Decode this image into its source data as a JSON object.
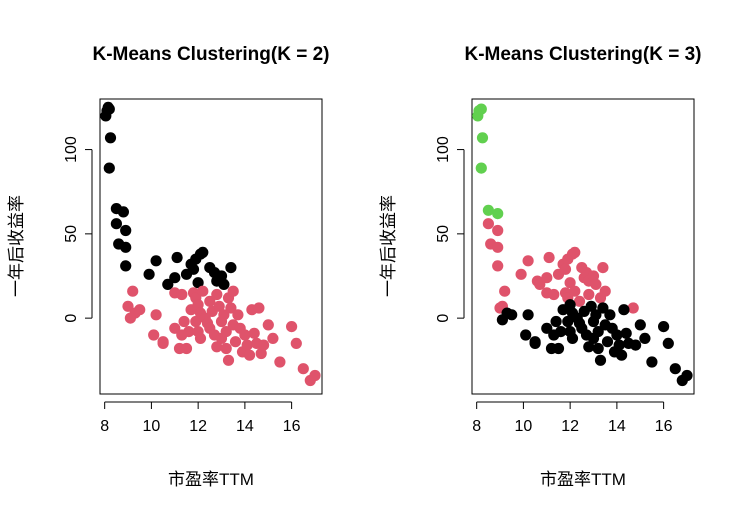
{
  "colors": {
    "black": "#000000",
    "pink": "#DF536B",
    "green": "#61D04F"
  },
  "chart_data": [
    {
      "type": "scatter",
      "title": "K-Means Clustering(K = 2)",
      "xlabel": "市盈率TTM",
      "ylabel": "一年后收益率",
      "xlim": [
        7.8,
        17.3
      ],
      "ylim": [
        -45,
        130
      ],
      "x_ticks": [
        8,
        10,
        12,
        14,
        16
      ],
      "y_ticks": [
        0,
        50,
        100
      ],
      "grid": false,
      "legend": "none",
      "series": [
        {
          "color": "#000000",
          "points": [
            [
              8.05,
              120
            ],
            [
              8.1,
              123
            ],
            [
              8.15,
              125
            ],
            [
              8.2,
              124
            ],
            [
              8.25,
              107
            ],
            [
              8.2,
              89
            ],
            [
              8.5,
              65
            ],
            [
              8.8,
              63
            ],
            [
              8.5,
              56
            ],
            [
              8.9,
              52
            ],
            [
              8.6,
              44
            ],
            [
              8.9,
              42
            ],
            [
              8.9,
              31
            ],
            [
              9.9,
              26
            ],
            [
              10.2,
              34
            ],
            [
              10.7,
              20
            ],
            [
              11.0,
              24
            ],
            [
              11.1,
              36
            ],
            [
              11.5,
              26
            ],
            [
              11.7,
              32
            ],
            [
              11.8,
              29
            ],
            [
              11.9,
              35
            ],
            [
              12.0,
              21
            ],
            [
              12.1,
              38
            ],
            [
              12.2,
              39
            ],
            [
              12.5,
              30
            ],
            [
              12.7,
              27
            ],
            [
              12.8,
              22
            ],
            [
              13.0,
              25
            ],
            [
              13.1,
              20
            ],
            [
              13.4,
              30
            ]
          ]
        },
        {
          "color": "#DF536B",
          "points": [
            [
              9.2,
              16
            ],
            [
              9.0,
              7
            ],
            [
              9.3,
              3
            ],
            [
              9.5,
              5
            ],
            [
              9.1,
              0
            ],
            [
              10.1,
              -10
            ],
            [
              10.5,
              -14
            ],
            [
              10.2,
              2
            ],
            [
              10.5,
              -15
            ],
            [
              11.0,
              15
            ],
            [
              11.0,
              -6
            ],
            [
              11.2,
              -18
            ],
            [
              11.3,
              14
            ],
            [
              11.4,
              -2
            ],
            [
              11.5,
              -18
            ],
            [
              11.6,
              -8
            ],
            [
              11.7,
              5
            ],
            [
              11.8,
              15
            ],
            [
              11.9,
              12
            ],
            [
              11.9,
              -2
            ],
            [
              12.0,
              8
            ],
            [
              12.0,
              -8
            ],
            [
              12.1,
              3
            ],
            [
              12.1,
              -12
            ],
            [
              12.2,
              16
            ],
            [
              12.3,
              0
            ],
            [
              12.4,
              -3
            ],
            [
              12.5,
              10
            ],
            [
              12.5,
              -6
            ],
            [
              12.6,
              4
            ],
            [
              12.7,
              -10
            ],
            [
              12.8,
              14
            ],
            [
              12.8,
              -17
            ],
            [
              12.9,
              7
            ],
            [
              13.0,
              -2
            ],
            [
              13.0,
              -12
            ],
            [
              13.1,
              2
            ],
            [
              13.2,
              -8
            ],
            [
              13.2,
              -18
            ],
            [
              13.3,
              12
            ],
            [
              13.3,
              -25
            ],
            [
              13.4,
              6
            ],
            [
              13.5,
              -4
            ],
            [
              13.5,
              16
            ],
            [
              13.6,
              -14
            ],
            [
              13.7,
              2
            ],
            [
              13.8,
              -6
            ],
            [
              13.9,
              -20
            ],
            [
              14.0,
              -10
            ],
            [
              14.1,
              -16
            ],
            [
              14.2,
              -22
            ],
            [
              14.3,
              5
            ],
            [
              14.4,
              -9
            ],
            [
              14.5,
              -15
            ],
            [
              14.6,
              6
            ],
            [
              14.7,
              -21
            ],
            [
              14.8,
              -16
            ],
            [
              15.0,
              -4
            ],
            [
              15.2,
              -12
            ],
            [
              15.5,
              -26
            ],
            [
              16.0,
              -5
            ],
            [
              16.2,
              -15
            ],
            [
              16.5,
              -30
            ],
            [
              16.8,
              -37
            ],
            [
              17.0,
              -34
            ],
            [
              11.3,
              -10
            ]
          ]
        }
      ]
    },
    {
      "type": "scatter",
      "title": "K-Means Clustering(K = 3)",
      "xlabel": "市盈率TTM",
      "ylabel": "一年后收益率",
      "xlim": [
        7.8,
        17.3
      ],
      "ylim": [
        -45,
        130
      ],
      "x_ticks": [
        8,
        10,
        12,
        14,
        16
      ],
      "y_ticks": [
        0,
        50,
        100
      ],
      "grid": false,
      "legend": "none",
      "series": [
        {
          "color": "#61D04F",
          "points": [
            [
              8.05,
              120
            ],
            [
              8.1,
              123
            ],
            [
              8.2,
              124
            ],
            [
              8.25,
              107
            ],
            [
              8.2,
              89
            ],
            [
              8.5,
              64
            ],
            [
              8.9,
              62
            ]
          ]
        },
        {
          "color": "#DF536B",
          "points": [
            [
              8.5,
              56
            ],
            [
              8.9,
              52
            ],
            [
              8.6,
              44
            ],
            [
              8.9,
              42
            ],
            [
              8.9,
              31
            ],
            [
              9.1,
              7
            ],
            [
              9.2,
              16
            ],
            [
              9.0,
              6
            ],
            [
              9.9,
              26
            ],
            [
              10.2,
              34
            ],
            [
              10.6,
              22
            ],
            [
              10.7,
              20
            ],
            [
              11.0,
              24
            ],
            [
              11.1,
              36
            ],
            [
              11.0,
              15
            ],
            [
              11.3,
              14
            ],
            [
              11.5,
              26
            ],
            [
              11.7,
              32
            ],
            [
              11.8,
              29
            ],
            [
              11.8,
              15
            ],
            [
              11.9,
              35
            ],
            [
              11.9,
              12
            ],
            [
              12.0,
              21
            ],
            [
              12.1,
              38
            ],
            [
              12.2,
              39
            ],
            [
              12.2,
              16
            ],
            [
              12.4,
              10
            ],
            [
              12.5,
              30
            ],
            [
              12.6,
              24
            ],
            [
              12.7,
              27
            ],
            [
              12.8,
              14
            ],
            [
              12.8,
              22
            ],
            [
              13.0,
              25
            ],
            [
              13.1,
              20
            ],
            [
              13.3,
              12
            ],
            [
              13.4,
              30
            ],
            [
              13.5,
              16
            ],
            [
              14.7,
              6
            ]
          ]
        },
        {
          "color": "#000000",
          "points": [
            [
              9.1,
              -1
            ],
            [
              9.3,
              3
            ],
            [
              9.5,
              2
            ],
            [
              10.1,
              -10
            ],
            [
              10.2,
              2
            ],
            [
              10.5,
              -14
            ],
            [
              10.5,
              -15
            ],
            [
              11.0,
              -6
            ],
            [
              11.2,
              -18
            ],
            [
              11.3,
              -10
            ],
            [
              11.4,
              -2
            ],
            [
              11.5,
              -18
            ],
            [
              11.6,
              -8
            ],
            [
              11.7,
              5
            ],
            [
              11.9,
              -2
            ],
            [
              12.0,
              -8
            ],
            [
              12.0,
              8
            ],
            [
              12.1,
              3
            ],
            [
              12.1,
              -12
            ],
            [
              12.3,
              0
            ],
            [
              12.4,
              -3
            ],
            [
              12.5,
              -6
            ],
            [
              12.6,
              4
            ],
            [
              12.7,
              -10
            ],
            [
              12.8,
              -17
            ],
            [
              12.9,
              7
            ],
            [
              13.0,
              -2
            ],
            [
              13.0,
              -12
            ],
            [
              13.1,
              2
            ],
            [
              13.2,
              -8
            ],
            [
              13.2,
              -18
            ],
            [
              13.3,
              -25
            ],
            [
              13.4,
              6
            ],
            [
              13.5,
              -4
            ],
            [
              13.6,
              -14
            ],
            [
              13.7,
              2
            ],
            [
              13.8,
              -6
            ],
            [
              13.9,
              -20
            ],
            [
              14.0,
              -10
            ],
            [
              14.1,
              -16
            ],
            [
              14.2,
              -22
            ],
            [
              14.3,
              5
            ],
            [
              14.4,
              -9
            ],
            [
              14.5,
              -15
            ],
            [
              14.8,
              -16
            ],
            [
              15.0,
              -4
            ],
            [
              15.2,
              -12
            ],
            [
              15.5,
              -26
            ],
            [
              16.0,
              -5
            ],
            [
              16.2,
              -15
            ],
            [
              16.5,
              -30
            ],
            [
              16.8,
              -37
            ],
            [
              17.0,
              -34
            ]
          ]
        }
      ]
    }
  ]
}
